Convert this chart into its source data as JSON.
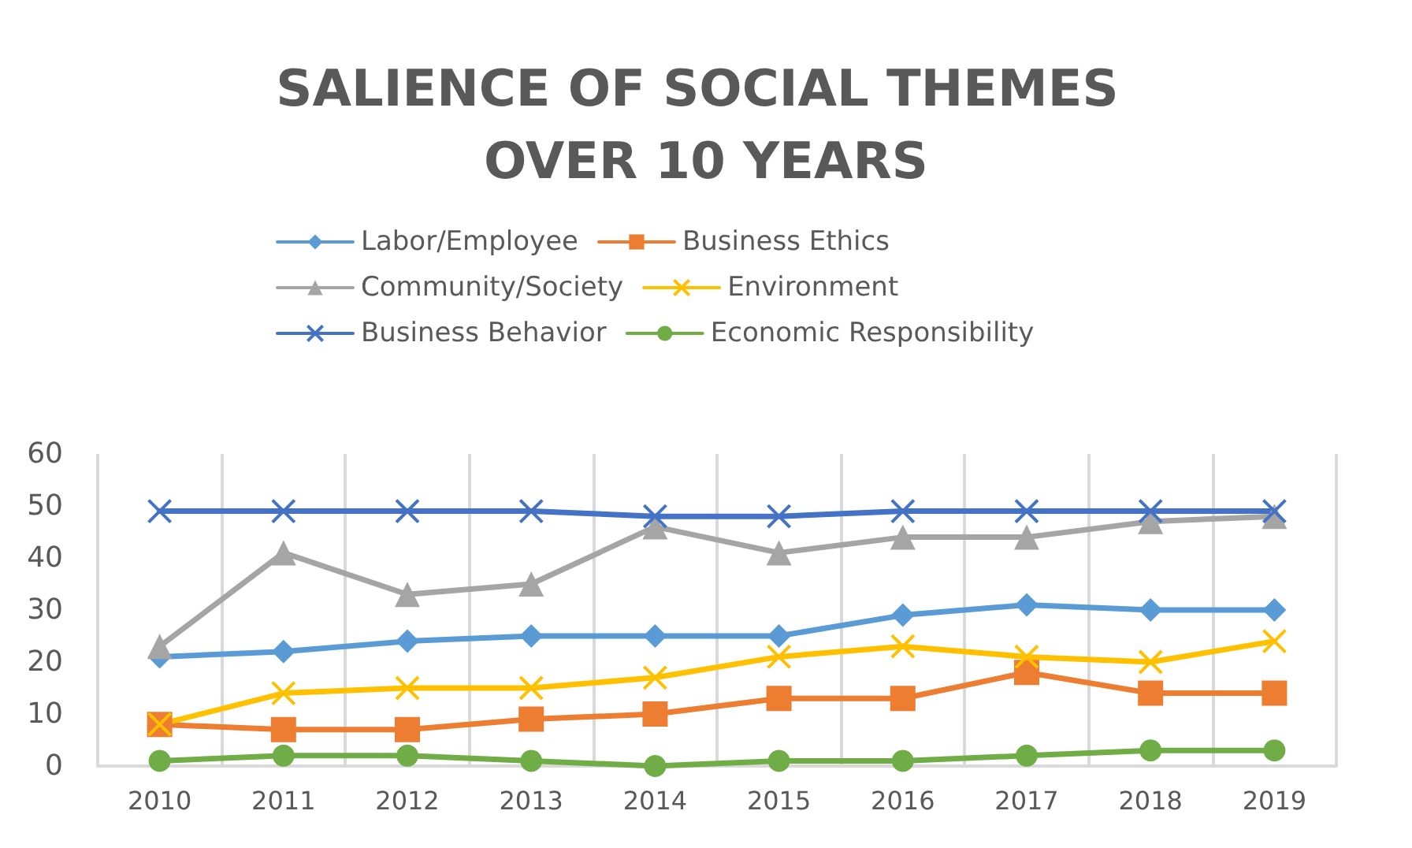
{
  "chart_data": {
    "type": "line",
    "title": "SALIENCE OF SOCIAL THEMES OVER 10 YEARS",
    "categories": [
      "2010",
      "2011",
      "2012",
      "2013",
      "2014",
      "2015",
      "2016",
      "2017",
      "2018",
      "2019"
    ],
    "series": [
      {
        "name": "Labor/Employee",
        "color": "#5b9bd5",
        "marker": "diamond",
        "values": [
          21,
          22,
          24,
          25,
          25,
          25,
          29,
          31,
          30,
          30
        ]
      },
      {
        "name": "Business Ethics",
        "color": "#ed7d31",
        "marker": "square",
        "values": [
          8,
          7,
          7,
          9,
          10,
          13,
          13,
          18,
          14,
          14
        ]
      },
      {
        "name": "Community/Society",
        "color": "#a5a5a5",
        "marker": "triangle",
        "values": [
          23,
          41,
          33,
          35,
          46,
          41,
          44,
          44,
          47,
          48
        ]
      },
      {
        "name": "Environment",
        "color": "#ffc000",
        "marker": "cross",
        "values": [
          8,
          14,
          15,
          15,
          17,
          21,
          23,
          21,
          20,
          24
        ]
      },
      {
        "name": "Business Behavior",
        "color": "#4472c4",
        "marker": "cross",
        "values": [
          49,
          49,
          49,
          49,
          48,
          48,
          49,
          49,
          49,
          49
        ]
      },
      {
        "name": "Economic Responsibility",
        "color": "#70ad47",
        "marker": "circle",
        "values": [
          1,
          2,
          2,
          1,
          0,
          1,
          1,
          2,
          3,
          3
        ]
      }
    ],
    "ylim": [
      0,
      60
    ],
    "yticks": [
      0,
      10,
      20,
      30,
      40,
      50,
      60
    ],
    "grid": "x",
    "legend": "top",
    "line_style": "solid"
  }
}
